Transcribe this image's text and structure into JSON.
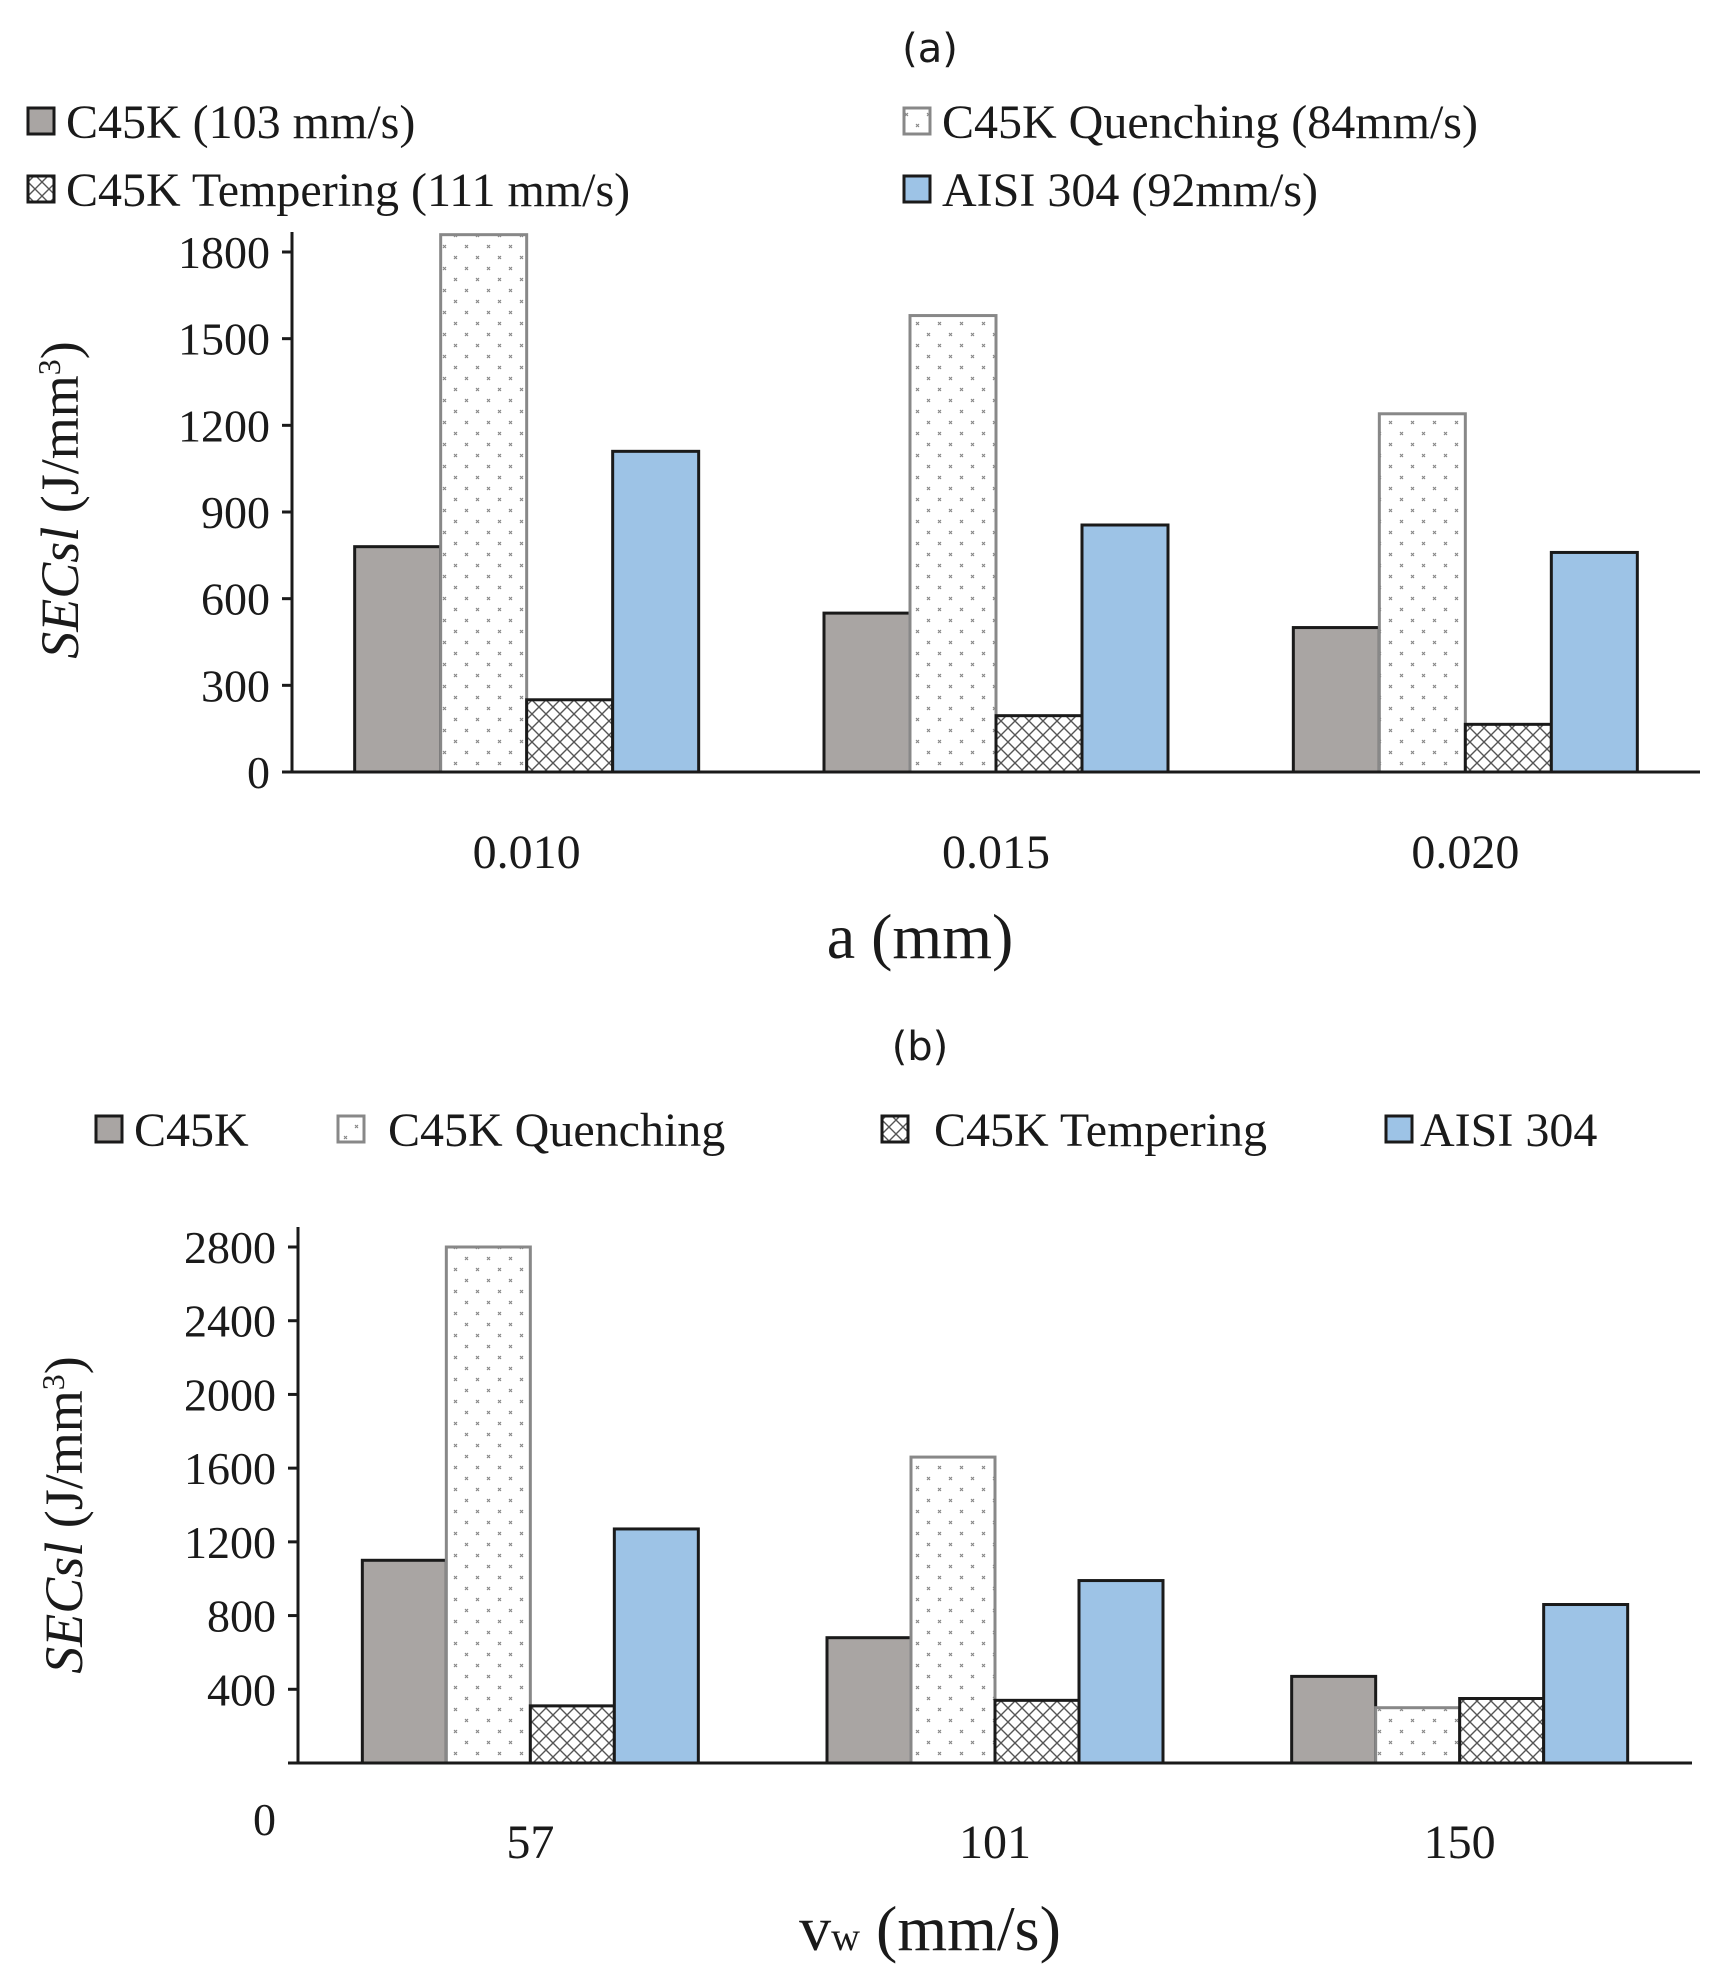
{
  "chart_data": [
    {
      "type": "bar",
      "panel_label": "(a)",
      "xlabel": "a (mm)",
      "ylabel_italic": "SECsl",
      "ylabel_unit": " (J/mm",
      "ylabel_sup": "3",
      "ylabel_close": ")",
      "ylim": [
        0,
        1800
      ],
      "yticks": [
        "0",
        "300",
        "600",
        "900",
        "1200",
        "1500",
        "1800"
      ],
      "legend_position": "top",
      "grid": false,
      "categories": [
        "0.010",
        "0.015",
        "0.020"
      ],
      "series": [
        {
          "name": "C45K (103 mm/s)",
          "values": [
            780,
            550,
            500
          ]
        },
        {
          "name": "C45K Quenching (84mm/s)",
          "values": [
            1860,
            1580,
            1240
          ]
        },
        {
          "name": "C45K Tempering (111 mm/s)",
          "values": [
            250,
            195,
            165
          ]
        },
        {
          "name": "AISI 304 (92mm/s)",
          "values": [
            1110,
            855,
            760
          ]
        }
      ]
    },
    {
      "type": "bar",
      "panel_label": "(b)",
      "xlabel_main": "v",
      "xlabel_sub": "w",
      "xlabel_rest": " (mm/s)",
      "ylabel_italic": "SECsl",
      "ylabel_unit": " (J/mm",
      "ylabel_sup": "3",
      "ylabel_close": ")",
      "ylim": [
        0,
        2800
      ],
      "yticks": [
        "0",
        "400",
        "800",
        "1200",
        "1600",
        "2000",
        "2400",
        "2800"
      ],
      "legend_position": "top",
      "grid": false,
      "categories": [
        "57",
        "101",
        "150"
      ],
      "series": [
        {
          "name": "C45K",
          "values": [
            1100,
            680,
            470
          ]
        },
        {
          "name": "C45K Quenching",
          "values": [
            2800,
            1660,
            300
          ]
        },
        {
          "name": "C45K Tempering",
          "values": [
            310,
            340,
            350
          ]
        },
        {
          "name": "AISI 304",
          "values": [
            1270,
            990,
            860
          ]
        }
      ]
    }
  ],
  "colors": {
    "c45k": "#a9a5a3",
    "quenching": "#ffffff",
    "tempering": "#ffffff",
    "aisi": "#9dc3e6",
    "stroke": "#1a1a1a"
  }
}
